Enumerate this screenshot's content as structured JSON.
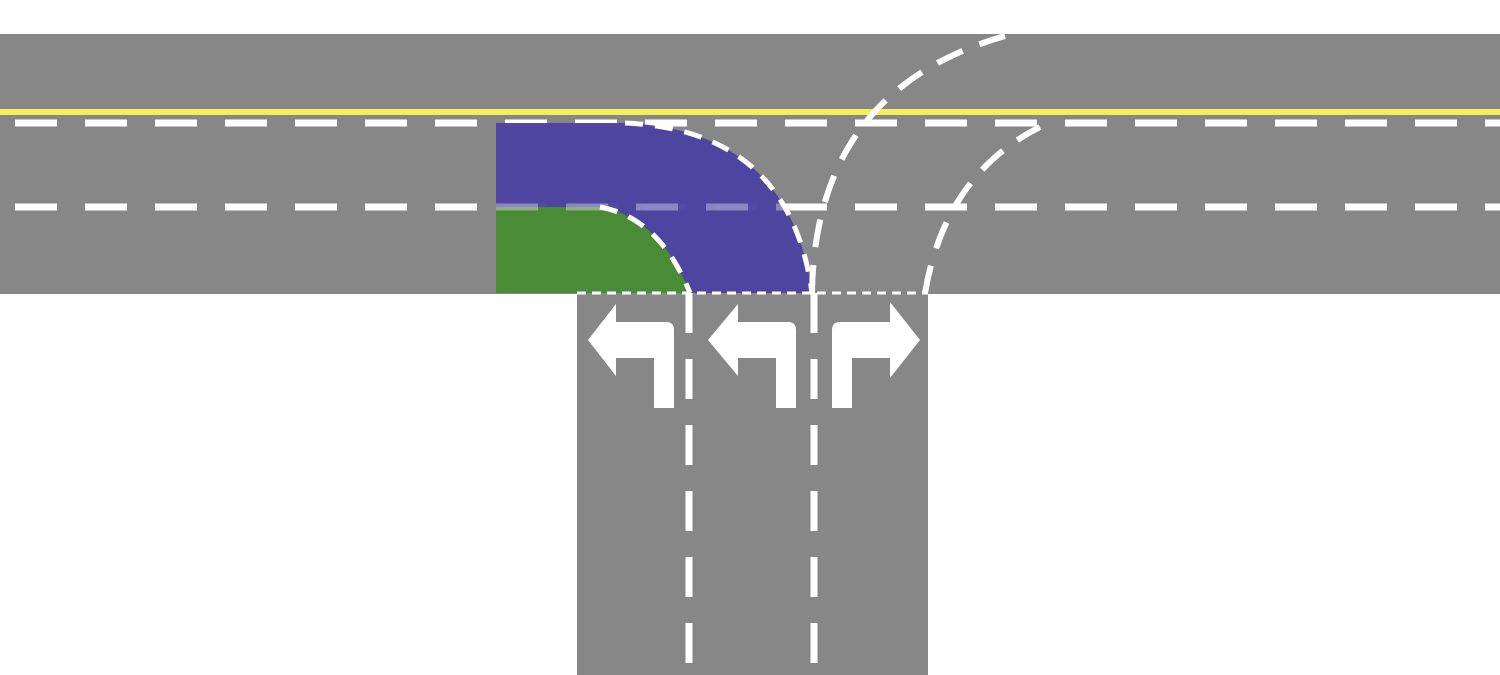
{
  "intersection": {
    "type": "T-intersection",
    "main_road": {
      "orientation": "horizontal",
      "lanes": 3,
      "center_line": "double-yellow-single"
    },
    "side_road": {
      "orientation": "vertical",
      "lanes": 3
    }
  },
  "lane_arrows": [
    {
      "name": "left-turn-arrow-icon",
      "direction": "left"
    },
    {
      "name": "left-turn-arrow-icon",
      "direction": "left"
    },
    {
      "name": "right-turn-arrow-icon",
      "direction": "right"
    }
  ],
  "highlighted_paths": [
    {
      "name": "left-turn-path-green",
      "color": "#4a8c35",
      "lane": "inner-left"
    },
    {
      "name": "left-turn-path-blue",
      "color": "#4b43a0",
      "lane": "outer-left"
    }
  ],
  "colors": {
    "road": "#878787",
    "lane_marking": "#ffffff",
    "center_line": "#f2ef5a",
    "background": "#ffffff",
    "green_path": "#4a8c35",
    "blue_path": "#4b43a0"
  }
}
